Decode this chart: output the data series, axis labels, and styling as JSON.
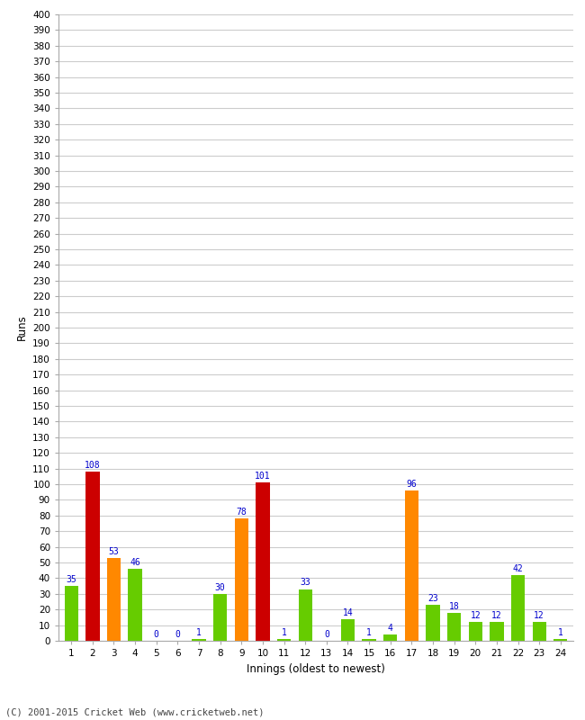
{
  "innings": [
    1,
    2,
    3,
    4,
    5,
    6,
    7,
    8,
    9,
    10,
    11,
    12,
    13,
    14,
    15,
    16,
    17,
    18,
    19,
    20,
    21,
    22,
    23,
    24
  ],
  "values": [
    35,
    108,
    53,
    46,
    0,
    0,
    1,
    30,
    78,
    101,
    1,
    33,
    0,
    14,
    1,
    4,
    96,
    23,
    18,
    12,
    12,
    42,
    12,
    1
  ],
  "colors": [
    "#66cc00",
    "#cc0000",
    "#ff8800",
    "#66cc00",
    "#66cc00",
    "#66cc00",
    "#66cc00",
    "#66cc00",
    "#ff8800",
    "#cc0000",
    "#66cc00",
    "#66cc00",
    "#66cc00",
    "#66cc00",
    "#66cc00",
    "#66cc00",
    "#ff8800",
    "#66cc00",
    "#66cc00",
    "#66cc00",
    "#66cc00",
    "#66cc00",
    "#66cc00",
    "#66cc00"
  ],
  "xlabel": "Innings (oldest to newest)",
  "ylabel": "Runs",
  "ylim": [
    0,
    400
  ],
  "yticks": [
    0,
    10,
    20,
    30,
    40,
    50,
    60,
    70,
    80,
    90,
    100,
    110,
    120,
    130,
    140,
    150,
    160,
    170,
    180,
    190,
    200,
    210,
    220,
    230,
    240,
    250,
    260,
    270,
    280,
    290,
    300,
    310,
    320,
    330,
    340,
    350,
    360,
    370,
    380,
    390,
    400
  ],
  "footer": "(C) 2001-2015 Cricket Web (www.cricketweb.net)",
  "label_color": "#0000cc",
  "bg_color": "#ffffff",
  "grid_color": "#cccccc",
  "bar_width": 0.65
}
